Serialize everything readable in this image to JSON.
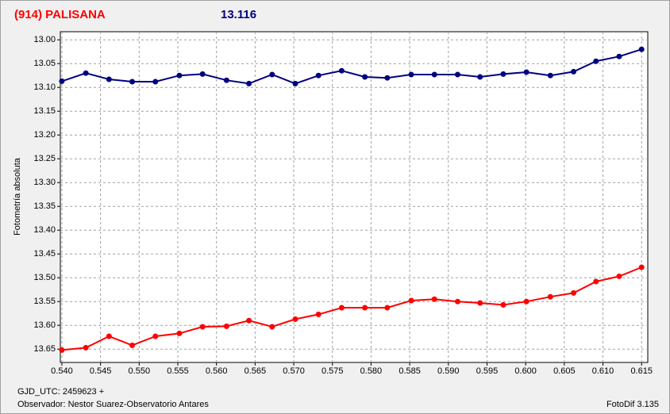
{
  "chart_data": {
    "type": "line",
    "title": "(914) PALISANA",
    "subtitle": "13.116",
    "ylabel": "Fotometría absoluta",
    "xlabel": "GJD_UTC: 2459623 +",
    "observer": "Observador: Nestor Suarez-Observatorio Antares",
    "software": "FotoDif 3.135",
    "x": [
      0.54,
      0.5431,
      0.5461,
      0.5491,
      0.5521,
      0.5552,
      0.5582,
      0.5613,
      0.5642,
      0.5672,
      0.5702,
      0.5732,
      0.5762,
      0.5792,
      0.5821,
      0.5852,
      0.5882,
      0.5912,
      0.5941,
      0.5971,
      0.6001,
      0.6032,
      0.6062,
      0.6091,
      0.6121,
      0.615
    ],
    "series": [
      {
        "color": "#000080",
        "values": [
          13.087,
          13.07,
          13.083,
          13.088,
          13.088,
          13.075,
          13.072,
          13.085,
          13.092,
          13.073,
          13.092,
          13.075,
          13.065,
          13.078,
          13.08,
          13.073,
          13.073,
          13.073,
          13.078,
          13.072,
          13.068,
          13.075,
          13.067,
          13.045,
          13.035,
          13.02
        ]
      },
      {
        "color": "#ff0000",
        "values": [
          13.652,
          13.647,
          13.623,
          13.642,
          13.623,
          13.617,
          13.603,
          13.602,
          13.59,
          13.603,
          13.587,
          13.577,
          13.563,
          13.563,
          13.563,
          13.548,
          13.545,
          13.55,
          13.553,
          13.557,
          13.55,
          13.54,
          13.532,
          13.508,
          13.497,
          13.478
        ]
      }
    ],
    "xlim": [
      0.5398,
      0.6158
    ],
    "ylim": [
      12.983,
      13.678
    ],
    "y_reversed": true,
    "grid": true,
    "xticks": [
      {
        "value": 0.54,
        "label": "0.540"
      },
      0.545,
      {
        "value": 0.55,
        "label": "0.550"
      },
      0.555,
      {
        "value": 0.56,
        "label": "0.560"
      },
      0.565,
      {
        "value": 0.57,
        "label": "0.570"
      },
      0.575,
      {
        "value": 0.58,
        "label": "0.580"
      },
      0.585,
      {
        "value": 0.59,
        "label": "0.590"
      },
      0.595,
      {
        "value": 0.6,
        "label": "0.600"
      },
      0.605,
      {
        "value": 0.61,
        "label": "0.610"
      },
      0.615
    ],
    "yticks": [
      {
        "value": 13.0,
        "label": "13.00"
      },
      13.05,
      {
        "value": 13.1,
        "label": "13.10"
      },
      13.15,
      {
        "value": 13.2,
        "label": "13.20"
      },
      13.25,
      {
        "value": 13.3,
        "label": "13.30"
      },
      13.35,
      {
        "value": 13.4,
        "label": "13.40"
      },
      13.45,
      {
        "value": 13.5,
        "label": "13.50"
      },
      13.55,
      {
        "value": 13.6,
        "label": "13.60"
      },
      13.65
    ]
  }
}
